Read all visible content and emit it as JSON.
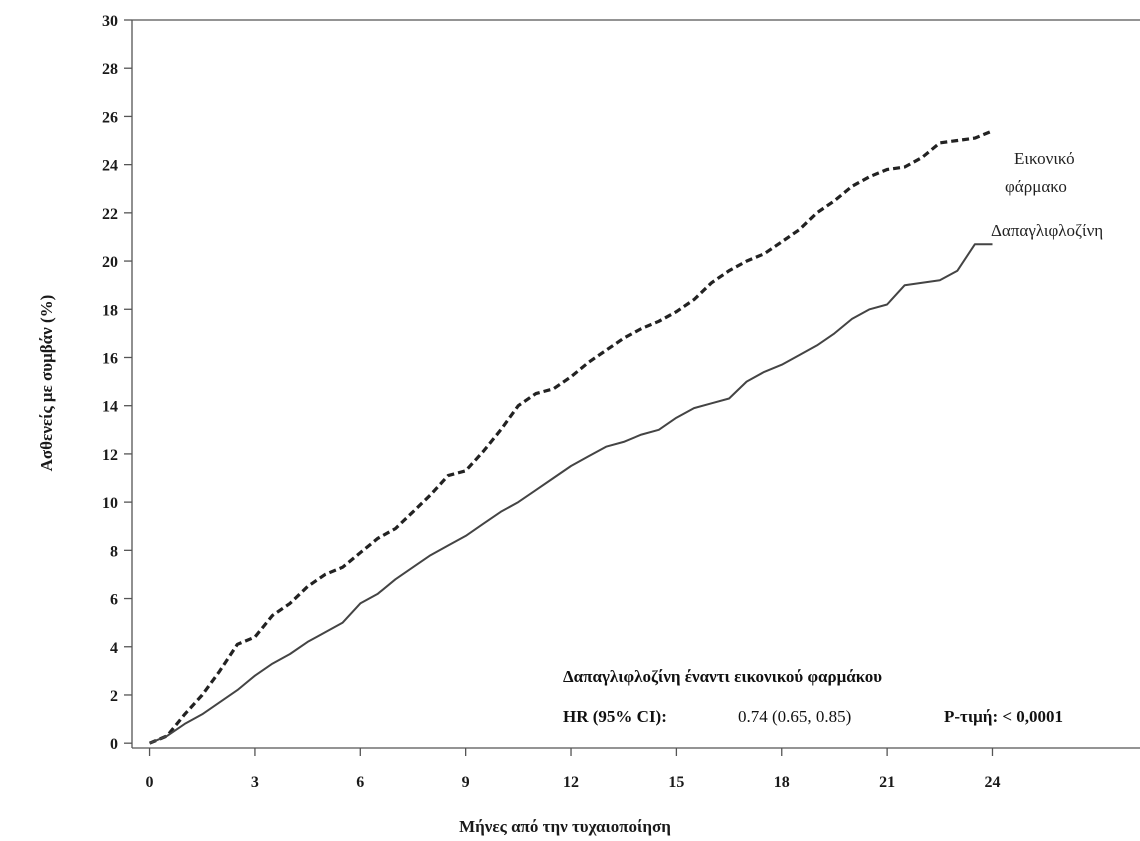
{
  "chart_data": {
    "type": "line",
    "xlabel": "Μήνες από την τυχαιοποίηση",
    "ylabel": "Ασθενείς με συμβάν (%)",
    "xlim": [
      -0.5,
      28.2
    ],
    "ylim": [
      -0.2,
      30
    ],
    "x_ticks": [
      0,
      3,
      6,
      9,
      12,
      15,
      18,
      21,
      24
    ],
    "y_ticks": [
      0,
      2,
      4,
      6,
      8,
      10,
      12,
      14,
      16,
      18,
      20,
      22,
      24,
      26,
      28,
      30
    ],
    "grid": false,
    "series": [
      {
        "name": "Εικονικό φάρμακο",
        "label_line1": "Εικονικό",
        "label_line2": "φάρμακο",
        "style": "dashed",
        "color": "#222222",
        "points": [
          [
            0,
            0
          ],
          [
            0.5,
            0.3
          ],
          [
            1,
            1.2
          ],
          [
            1.5,
            2
          ],
          [
            2,
            3
          ],
          [
            2.5,
            4.1
          ],
          [
            3,
            4.4
          ],
          [
            3.5,
            5.3
          ],
          [
            4,
            5.8
          ],
          [
            4.5,
            6.5
          ],
          [
            5,
            7
          ],
          [
            5.5,
            7.3
          ],
          [
            6,
            7.9
          ],
          [
            6.5,
            8.5
          ],
          [
            7,
            8.9
          ],
          [
            7.5,
            9.6
          ],
          [
            8,
            10.3
          ],
          [
            8.5,
            11.1
          ],
          [
            9,
            11.3
          ],
          [
            9.5,
            12.1
          ],
          [
            10,
            13
          ],
          [
            10.5,
            14
          ],
          [
            11,
            14.5
          ],
          [
            11.5,
            14.7
          ],
          [
            12,
            15.2
          ],
          [
            12.5,
            15.8
          ],
          [
            13,
            16.3
          ],
          [
            13.5,
            16.8
          ],
          [
            14,
            17.2
          ],
          [
            14.5,
            17.5
          ],
          [
            15,
            17.9
          ],
          [
            15.5,
            18.4
          ],
          [
            16,
            19.1
          ],
          [
            16.5,
            19.6
          ],
          [
            17,
            20
          ],
          [
            17.5,
            20.3
          ],
          [
            18,
            20.8
          ],
          [
            18.5,
            21.3
          ],
          [
            19,
            22
          ],
          [
            19.5,
            22.5
          ],
          [
            20,
            23.1
          ],
          [
            20.5,
            23.5
          ],
          [
            21,
            23.8
          ],
          [
            21.5,
            23.9
          ],
          [
            22,
            24.3
          ],
          [
            22.5,
            24.9
          ],
          [
            23,
            25
          ],
          [
            23.5,
            25.1
          ],
          [
            24,
            25.4
          ]
        ]
      },
      {
        "name": "Δαπαγλιφλοζίνη",
        "label_line1": "Δαπαγλιφλοζίνη",
        "label_line2": "",
        "style": "solid",
        "color": "#444444",
        "points": [
          [
            0,
            0
          ],
          [
            0.5,
            0.3
          ],
          [
            1,
            0.8
          ],
          [
            1.5,
            1.2
          ],
          [
            2,
            1.7
          ],
          [
            2.5,
            2.2
          ],
          [
            3,
            2.8
          ],
          [
            3.5,
            3.3
          ],
          [
            4,
            3.7
          ],
          [
            4.5,
            4.2
          ],
          [
            5,
            4.6
          ],
          [
            5.5,
            5
          ],
          [
            6,
            5.8
          ],
          [
            6.5,
            6.2
          ],
          [
            7,
            6.8
          ],
          [
            7.5,
            7.3
          ],
          [
            8,
            7.8
          ],
          [
            8.5,
            8.2
          ],
          [
            9,
            8.6
          ],
          [
            9.5,
            9.1
          ],
          [
            10,
            9.6
          ],
          [
            10.5,
            10
          ],
          [
            11,
            10.5
          ],
          [
            11.5,
            11
          ],
          [
            12,
            11.5
          ],
          [
            12.5,
            11.9
          ],
          [
            13,
            12.3
          ],
          [
            13.5,
            12.5
          ],
          [
            14,
            12.8
          ],
          [
            14.5,
            13
          ],
          [
            15,
            13.5
          ],
          [
            15.5,
            13.9
          ],
          [
            16,
            14.1
          ],
          [
            16.5,
            14.3
          ],
          [
            17,
            15
          ],
          [
            17.5,
            15.4
          ],
          [
            18,
            15.7
          ],
          [
            18.5,
            16.1
          ],
          [
            19,
            16.5
          ],
          [
            19.5,
            17
          ],
          [
            20,
            17.6
          ],
          [
            20.5,
            18
          ],
          [
            21,
            18.2
          ],
          [
            21.5,
            19
          ],
          [
            22,
            19.1
          ],
          [
            22.5,
            19.2
          ],
          [
            23,
            19.6
          ],
          [
            23.5,
            20.7
          ],
          [
            24,
            20.7
          ]
        ]
      }
    ],
    "annotation": {
      "title": "Δαπαγλιφλοζίνη έναντι εικονικού φαρμάκου",
      "hr_label": "HR (95% CI):",
      "hr_value": "0.74 (0.65, 0.85)",
      "p_label": "P-τιμή: < 0,0001"
    }
  }
}
